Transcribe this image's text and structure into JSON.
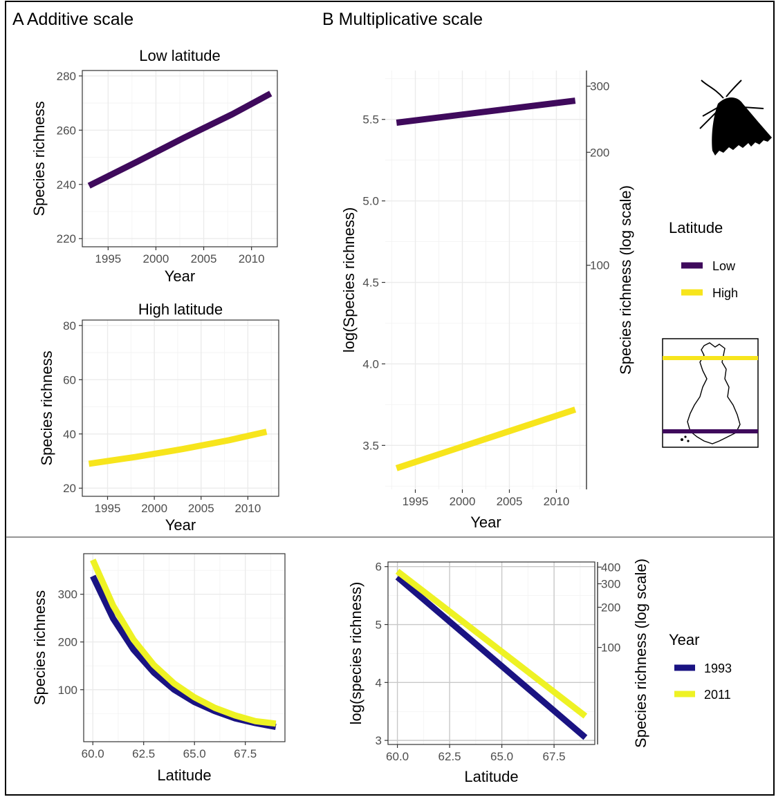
{
  "sections": {
    "a": "A Additive scale",
    "b": "B Multiplicative scale"
  },
  "colors": {
    "low": "#3f0a5c",
    "high": "#f7e51c",
    "y1993": "#1a1382",
    "y2011": "#eef224"
  },
  "legend_latitude": {
    "title": "Latitude",
    "items": [
      {
        "label": "Low",
        "color": "#3f0a5c"
      },
      {
        "label": "High",
        "color": "#f7e51c"
      }
    ]
  },
  "legend_year": {
    "title": "Year",
    "items": [
      {
        "label": "1993",
        "color": "#1a1382"
      },
      {
        "label": "2011",
        "color": "#eef224"
      }
    ]
  },
  "icons": {
    "moth": "moth-silhouette-icon",
    "map": "finland-map-icon"
  },
  "chart_data": [
    {
      "id": "a_low",
      "type": "line",
      "title": "Low latitude",
      "xlabel": "Year",
      "ylabel": "Species richness",
      "xlim": [
        1992.3,
        2012.7
      ],
      "ylim": [
        217,
        282
      ],
      "xticks": [
        1995,
        2000,
        2005,
        2010
      ],
      "yticks": [
        220,
        240,
        260,
        280
      ],
      "series": [
        {
          "color": "#3f0a5c",
          "x": [
            1993,
            1998,
            2003,
            2008,
            2012
          ],
          "y": [
            239.5,
            248.3,
            257.3,
            265.9,
            273.5
          ]
        }
      ]
    },
    {
      "id": "a_high",
      "type": "line",
      "title": "High latitude",
      "xlabel": "Year",
      "ylabel": "Species richness",
      "xlim": [
        1992.3,
        2013.3
      ],
      "ylim": [
        17,
        82
      ],
      "xticks": [
        1995,
        2000,
        2005,
        2010
      ],
      "yticks": [
        20,
        40,
        60,
        80
      ],
      "series": [
        {
          "color": "#f7e51c",
          "x": [
            1993,
            1998,
            2003,
            2008,
            2012
          ],
          "y": [
            29,
            31.5,
            34.4,
            37.7,
            40.8
          ]
        }
      ]
    },
    {
      "id": "b_main",
      "type": "line",
      "title": "",
      "xlabel": "Year",
      "ylabel": "log(Species richness)",
      "ylabel2": "Species richness (log scale)",
      "xlim": [
        1991.8,
        2013.2
      ],
      "ylim": [
        3.23,
        5.8
      ],
      "xticks": [
        1995,
        2000,
        2005,
        2010
      ],
      "yticks": [
        3.5,
        4.0,
        4.5,
        5.0,
        5.5
      ],
      "yticks2": [
        100,
        200,
        300
      ],
      "series": [
        {
          "color": "#3f0a5c",
          "x": [
            1993,
            2012
          ],
          "y": [
            5.48,
            5.615
          ]
        },
        {
          "color": "#f7e51c",
          "x": [
            1993,
            2012
          ],
          "y": [
            3.36,
            3.72
          ]
        }
      ]
    },
    {
      "id": "c_add",
      "type": "line",
      "title": "",
      "xlabel": "Latitude",
      "ylabel": "Species richness",
      "xlim": [
        59.55,
        69.45
      ],
      "ylim": [
        -9,
        385
      ],
      "xticks": [
        60.0,
        62.5,
        65.0,
        67.5
      ],
      "xticklabels": [
        "60.0",
        "62.5",
        "65.0",
        "67.5"
      ],
      "yticks": [
        100,
        200,
        300
      ],
      "series": [
        {
          "name": "1993",
          "color": "#1a1382",
          "x": [
            60,
            61,
            62,
            63,
            64,
            65,
            66,
            67,
            68,
            69
          ],
          "y": [
            338,
            249,
            184,
            136,
            100,
            74,
            55,
            40,
            30,
            22
          ]
        },
        {
          "name": "2011",
          "color": "#eef224",
          "x": [
            60,
            61,
            62,
            63,
            64,
            65,
            66,
            67,
            68,
            69
          ],
          "y": [
            372,
            276,
            205,
            152,
            113,
            84,
            62,
            46,
            34,
            29
          ]
        }
      ]
    },
    {
      "id": "c_mult",
      "type": "line",
      "title": "",
      "xlabel": "Latitude",
      "ylabel": "log(species richness)",
      "ylabel2": "Species richness (log scale)",
      "xlim": [
        59.55,
        69.45
      ],
      "ylim": [
        2.93,
        6.08
      ],
      "xticks": [
        60.0,
        62.5,
        65.0,
        67.5
      ],
      "xticklabels": [
        "60.0",
        "62.5",
        "65.0",
        "67.5"
      ],
      "yticks": [
        3,
        4,
        5,
        6
      ],
      "yticks2": [
        100,
        200,
        300,
        400
      ],
      "series": [
        {
          "name": "1993",
          "color": "#1a1382",
          "x": [
            60,
            69
          ],
          "y": [
            5.82,
            3.05
          ]
        },
        {
          "name": "2011",
          "color": "#eef224",
          "x": [
            60,
            69
          ],
          "y": [
            5.92,
            3.42
          ]
        }
      ]
    }
  ]
}
